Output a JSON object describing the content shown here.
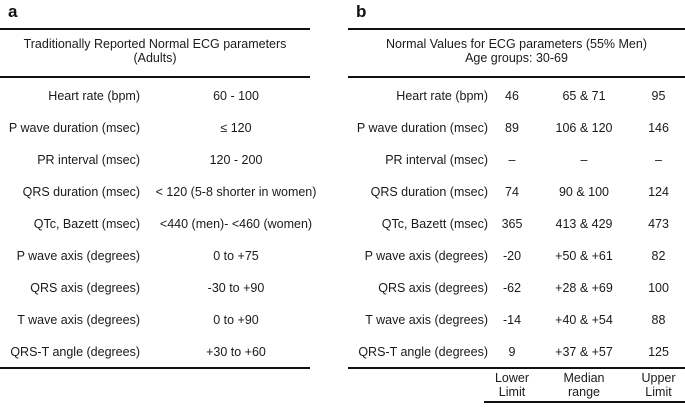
{
  "panel_a": {
    "label": "a",
    "header": [
      "Traditionally Reported Normal ECG parameters",
      "(Adults)"
    ],
    "rows": [
      {
        "param": "Heart rate (bpm)",
        "value": "60 - 100"
      },
      {
        "param": "P wave duration (msec)",
        "value": "≤ 120"
      },
      {
        "param": "PR interval (msec)",
        "value": "120 - 200"
      },
      {
        "param": "QRS duration (msec)",
        "value": "< 120 (5-8 shorter in women)"
      },
      {
        "param": "QTc, Bazett (msec)",
        "value": "<440 (men)- <460 (women)"
      },
      {
        "param": "P wave axis (degrees)",
        "value": "0 to +75"
      },
      {
        "param": "QRS axis (degrees)",
        "value": "-30 to +90"
      },
      {
        "param": "T wave axis (degrees)",
        "value": "0 to +90"
      },
      {
        "param": "QRS-T angle (degrees)",
        "value": "+30 to +60"
      }
    ]
  },
  "panel_b": {
    "label": "b",
    "header": [
      "Normal Values for ECG parameters (55% Men)",
      "Age groups: 30-69"
    ],
    "rows": [
      {
        "param": "Heart rate (bpm)",
        "lower": "46",
        "median": "65 & 71",
        "upper": "95"
      },
      {
        "param": "P wave duration (msec)",
        "lower": "89",
        "median": "106 & 120",
        "upper": "146"
      },
      {
        "param": "PR interval (msec)",
        "lower": "–",
        "median": "–",
        "upper": "–"
      },
      {
        "param": "QRS duration (msec)",
        "lower": "74",
        "median": "90 & 100",
        "upper": "124"
      },
      {
        "param": "QTc, Bazett (msec)",
        "lower": "365",
        "median": "413 & 429",
        "upper": "473"
      },
      {
        "param": "P wave axis (degrees)",
        "lower": "-20",
        "median": "+50 & +61",
        "upper": "82"
      },
      {
        "param": "QRS axis (degrees)",
        "lower": "-62",
        "median": "+28 & +69",
        "upper": "100"
      },
      {
        "param": "T wave axis (degrees)",
        "lower": "-14",
        "median": "+40 & +54",
        "upper": "88"
      },
      {
        "param": "QRS-T angle (degrees)",
        "lower": "9",
        "median": "+37 & +57",
        "upper": "125"
      }
    ],
    "footer": {
      "lower": [
        "Lower",
        "Limit"
      ],
      "median": [
        "Median",
        "range"
      ],
      "upper": [
        "Upper",
        "Limit"
      ]
    }
  }
}
